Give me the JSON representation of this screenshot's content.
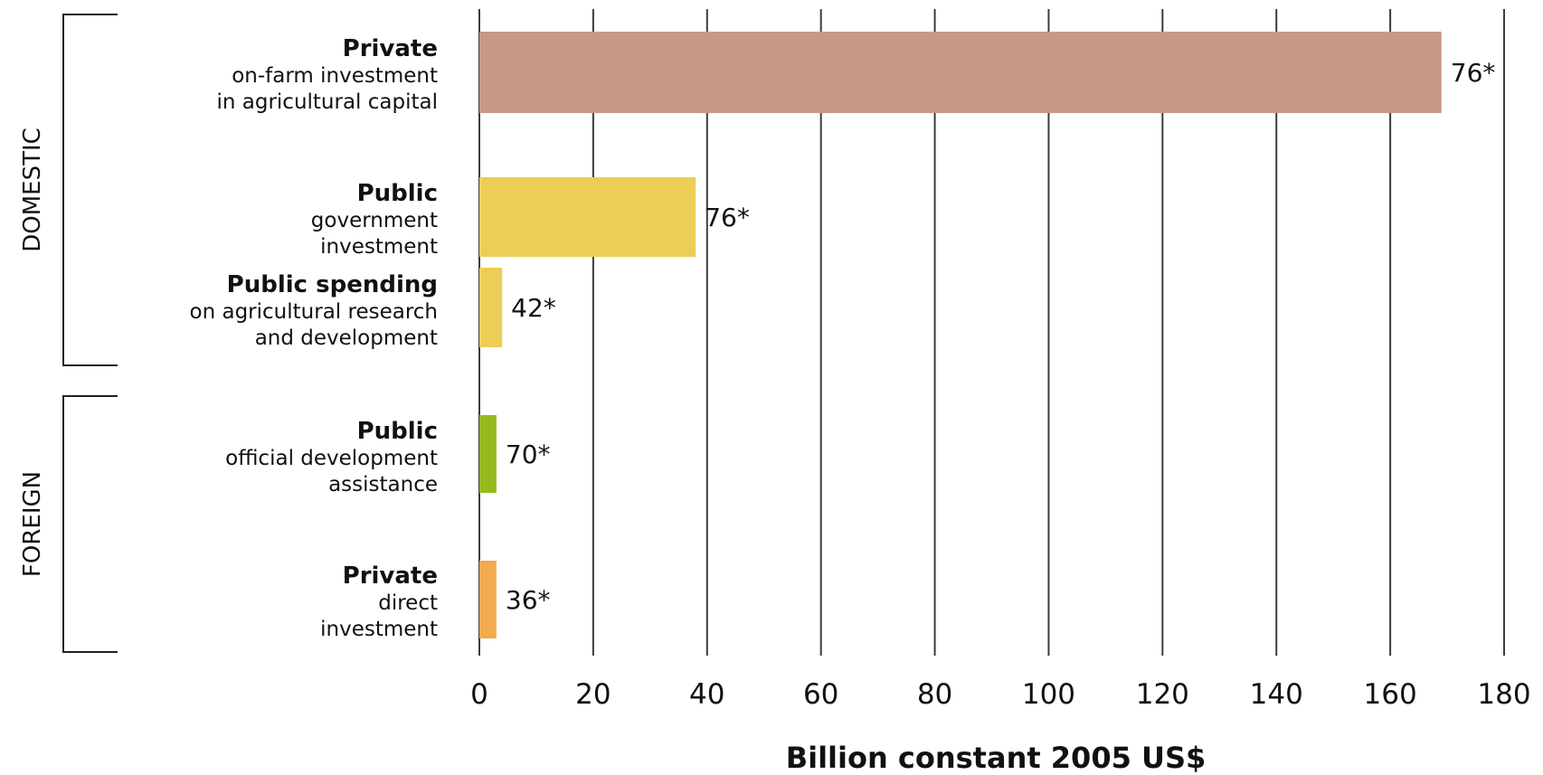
{
  "chart_data": {
    "type": "bar",
    "orientation": "horizontal",
    "xlabel": "Billion constant 2005 US$",
    "xlim": [
      0,
      180
    ],
    "xticks": [
      0,
      20,
      40,
      60,
      80,
      100,
      120,
      140,
      160,
      180
    ],
    "grid": true,
    "groups": [
      {
        "label": "DOMESTIC",
        "category_indices": [
          0,
          1,
          2
        ]
      },
      {
        "label": "FOREIGN",
        "category_indices": [
          3,
          4
        ]
      }
    ],
    "categories": [
      {
        "title": "Private",
        "subtitle": [
          "on-farm investment",
          "in agricultural capital"
        ],
        "value": 169,
        "label": "76*",
        "color": "#c89886"
      },
      {
        "title": "Public",
        "subtitle": [
          "government",
          "investment"
        ],
        "value": 38,
        "label": "76*",
        "color": "#ebcd58"
      },
      {
        "title": "Public spending",
        "subtitle": [
          "on agricultural research",
          "and development"
        ],
        "value": 4,
        "label": "42*",
        "color": "#ebcd58"
      },
      {
        "title": "Public",
        "subtitle": [
          "official development",
          "assistance"
        ],
        "value": 3,
        "label": "70*",
        "color": "#95bb1f"
      },
      {
        "title": "Private",
        "subtitle": [
          "direct",
          "investment"
        ],
        "value": 3,
        "label": "36*",
        "color": "#f2ab4f"
      }
    ]
  }
}
